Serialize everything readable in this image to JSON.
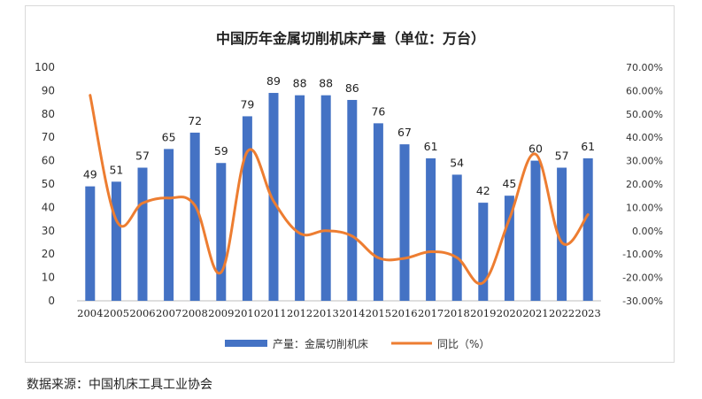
{
  "source_note": "数据来源：中国机床工具工业协会",
  "chart_data": {
    "type": "bar",
    "title": "中国历年金属切削机床产量（单位：万台）",
    "categories": [
      "2004",
      "2005",
      "2006",
      "2007",
      "2008",
      "2009",
      "2010",
      "2011",
      "2012",
      "2013",
      "2014",
      "2015",
      "2016",
      "2017",
      "2018",
      "2019",
      "2020",
      "2021",
      "2022",
      "2023"
    ],
    "series": [
      {
        "name": "产量：金属切削机床",
        "type": "bar",
        "axis": "left",
        "color": "#4472c4",
        "values": [
          49,
          51,
          57,
          65,
          72,
          59,
          79,
          89,
          88,
          88,
          86,
          76,
          67,
          61,
          54,
          42,
          45,
          60,
          57,
          61
        ],
        "data_labels": [
          "49",
          "51",
          "57",
          "65",
          "72",
          "59",
          "79",
          "89",
          "88",
          "88",
          "86",
          "76",
          "67",
          "61",
          "54",
          "42",
          "45",
          "60",
          "57",
          "61"
        ]
      },
      {
        "name": "同比（%）",
        "type": "line",
        "axis": "right",
        "color": "#ed7d31",
        "values": [
          58.0,
          4.5,
          11.8,
          14.0,
          10.8,
          -17.8,
          33.9,
          12.7,
          -1.1,
          0.0,
          -2.3,
          -11.6,
          -11.8,
          -9.0,
          -11.5,
          -22.2,
          5.0,
          32.8,
          -5.0,
          6.9
        ]
      }
    ],
    "y_left": {
      "ylim": [
        0,
        100
      ],
      "ticks": [
        "0",
        "10",
        "20",
        "30",
        "40",
        "50",
        "60",
        "70",
        "80",
        "90",
        "100"
      ]
    },
    "y_right": {
      "ylim": [
        -30,
        70
      ],
      "ticks": [
        "-30.00%",
        "-20.00%",
        "-10.00%",
        "0.00%",
        "10.00%",
        "20.00%",
        "30.00%",
        "40.00%",
        "50.00%",
        "60.00%",
        "70.00%"
      ]
    },
    "grid": false,
    "legend_position": "bottom"
  }
}
